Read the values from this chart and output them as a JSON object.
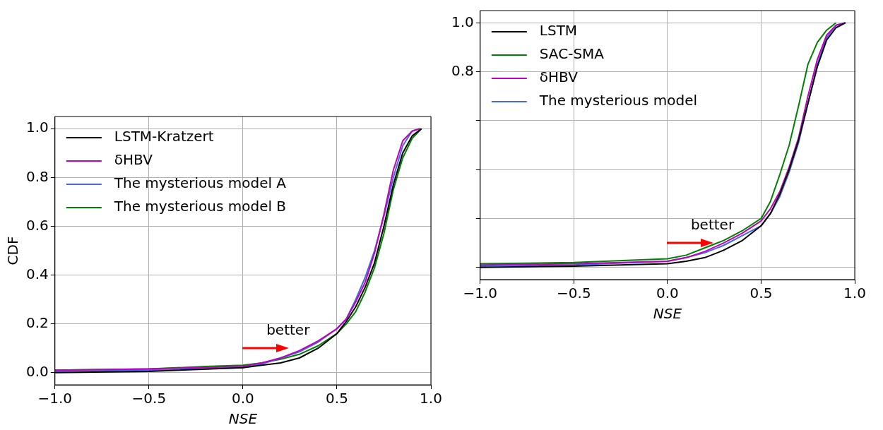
{
  "chart_data": [
    {
      "type": "line",
      "xlabel": "NSE",
      "ylabel": "CDF",
      "xlim": [
        -1,
        1
      ],
      "xticks": [
        {
          "value": -1,
          "label": "−1.0"
        },
        {
          "value": -0.5,
          "label": "−0.5"
        },
        {
          "value": 0,
          "label": "0.0"
        },
        {
          "value": 0.5,
          "label": "0.5"
        },
        {
          "value": 1,
          "label": "1.0"
        }
      ],
      "ylim": [
        -0.05,
        1.05
      ],
      "yticks": [
        {
          "value": 0,
          "label": "0.0"
        },
        {
          "value": 0.2,
          "label": "0.2"
        },
        {
          "value": 0.4,
          "label": "0.4"
        },
        {
          "value": 0.6,
          "label": "0.6"
        },
        {
          "value": 0.8,
          "label": "0.8"
        },
        {
          "value": 1,
          "label": "1.0"
        }
      ],
      "grid": true,
      "legend": "top left",
      "marker": "none",
      "line_style": "solid",
      "annotations": [
        "better"
      ],
      "series": [
        {
          "name": "LSTM-Kratzert",
          "color": "#000000",
          "x": [
            -1,
            -0.5,
            0,
            0.1,
            0.2,
            0.3,
            0.4,
            0.5,
            0.55,
            0.6,
            0.65,
            0.7,
            0.75,
            0.8,
            0.85,
            0.9,
            0.95
          ],
          "values": [
            0,
            0.005,
            0.02,
            0.03,
            0.04,
            0.06,
            0.1,
            0.16,
            0.21,
            0.27,
            0.35,
            0.45,
            0.6,
            0.77,
            0.9,
            0.97,
            1
          ]
        },
        {
          "name": "δHBV",
          "color": "#bf00bf",
          "x": [
            -1,
            -0.5,
            0,
            0.1,
            0.2,
            0.3,
            0.4,
            0.5,
            0.55,
            0.6,
            0.65,
            0.7,
            0.75,
            0.8,
            0.85,
            0.9,
            0.94
          ],
          "values": [
            0.01,
            0.015,
            0.025,
            0.04,
            0.06,
            0.09,
            0.13,
            0.18,
            0.22,
            0.29,
            0.37,
            0.49,
            0.65,
            0.83,
            0.95,
            0.99,
            1
          ]
        },
        {
          "name": "The mysterious model A",
          "color": "#4169e1",
          "x": [
            -1,
            -0.5,
            0,
            0.1,
            0.2,
            0.3,
            0.4,
            0.5,
            0.55,
            0.6,
            0.65,
            0.7,
            0.75,
            0.8,
            0.85,
            0.9,
            0.94
          ],
          "values": [
            0.005,
            0.01,
            0.02,
            0.035,
            0.06,
            0.085,
            0.125,
            0.18,
            0.22,
            0.3,
            0.39,
            0.5,
            0.64,
            0.8,
            0.93,
            0.99,
            1
          ]
        },
        {
          "name": "The mysterious model B",
          "color": "#008000",
          "x": [
            -1,
            -0.5,
            -0.2,
            0,
            0.1,
            0.2,
            0.3,
            0.4,
            0.5,
            0.55,
            0.6,
            0.65,
            0.7,
            0.75,
            0.8,
            0.85,
            0.9,
            0.95
          ],
          "values": [
            0.01,
            0.015,
            0.025,
            0.03,
            0.04,
            0.055,
            0.075,
            0.11,
            0.16,
            0.2,
            0.25,
            0.33,
            0.43,
            0.57,
            0.75,
            0.88,
            0.96,
            1
          ]
        }
      ]
    },
    {
      "type": "line",
      "xlabel": "NSE",
      "xlim": [
        -1,
        1
      ],
      "xticks": [
        {
          "value": -1,
          "label": "−1.0"
        },
        {
          "value": -0.5,
          "label": "−0.5"
        },
        {
          "value": 0,
          "label": "0.0"
        },
        {
          "value": 0.5,
          "label": "0.5"
        },
        {
          "value": 1,
          "label": "1.0"
        }
      ],
      "ylim": [
        -0.05,
        1.05
      ],
      "yticks": [
        {
          "value": 0,
          "label": null
        },
        {
          "value": 0.2,
          "label": null
        },
        {
          "value": 0.4,
          "label": null
        },
        {
          "value": 0.6,
          "label": null
        },
        {
          "value": 0.8,
          "label": "0.8"
        },
        {
          "value": 1,
          "label": "1.0"
        }
      ],
      "grid": true,
      "legend": "top left",
      "marker": "none",
      "line_style": "solid",
      "annotations": [
        "better"
      ],
      "series": [
        {
          "name": "LSTM",
          "color": "#000000",
          "x": [
            -1,
            -0.5,
            0,
            0.1,
            0.2,
            0.3,
            0.4,
            0.5,
            0.55,
            0.6,
            0.65,
            0.7,
            0.75,
            0.8,
            0.85,
            0.9,
            0.95
          ],
          "values": [
            0,
            0.005,
            0.015,
            0.025,
            0.04,
            0.07,
            0.11,
            0.17,
            0.22,
            0.3,
            0.4,
            0.52,
            0.67,
            0.82,
            0.93,
            0.98,
            1
          ]
        },
        {
          "name": "SAC-SMA",
          "color": "#008000",
          "x": [
            -1,
            -0.5,
            0,
            0.1,
            0.2,
            0.3,
            0.4,
            0.5,
            0.55,
            0.6,
            0.65,
            0.7,
            0.75,
            0.8,
            0.85,
            0.9
          ],
          "values": [
            0.015,
            0.02,
            0.035,
            0.05,
            0.08,
            0.11,
            0.15,
            0.2,
            0.27,
            0.38,
            0.5,
            0.66,
            0.83,
            0.92,
            0.97,
            1
          ]
        },
        {
          "name": "δHBV",
          "color": "#bf00bf",
          "x": [
            -1,
            -0.5,
            0,
            0.1,
            0.2,
            0.3,
            0.4,
            0.5,
            0.55,
            0.6,
            0.65,
            0.7,
            0.75,
            0.8,
            0.85,
            0.9,
            0.95
          ],
          "values": [
            0.01,
            0.015,
            0.025,
            0.04,
            0.065,
            0.1,
            0.14,
            0.19,
            0.24,
            0.31,
            0.41,
            0.53,
            0.7,
            0.85,
            0.95,
            0.99,
            1
          ]
        },
        {
          "name": "The mysterious model",
          "color": "#4169e1",
          "x": [
            -1,
            -0.5,
            0,
            0.1,
            0.2,
            0.3,
            0.4,
            0.5,
            0.55,
            0.6,
            0.65,
            0.7,
            0.75,
            0.8,
            0.85,
            0.9,
            0.95
          ],
          "values": [
            0.005,
            0.01,
            0.025,
            0.04,
            0.06,
            0.09,
            0.13,
            0.17,
            0.22,
            0.29,
            0.39,
            0.51,
            0.67,
            0.83,
            0.94,
            0.99,
            1
          ]
        }
      ]
    }
  ]
}
